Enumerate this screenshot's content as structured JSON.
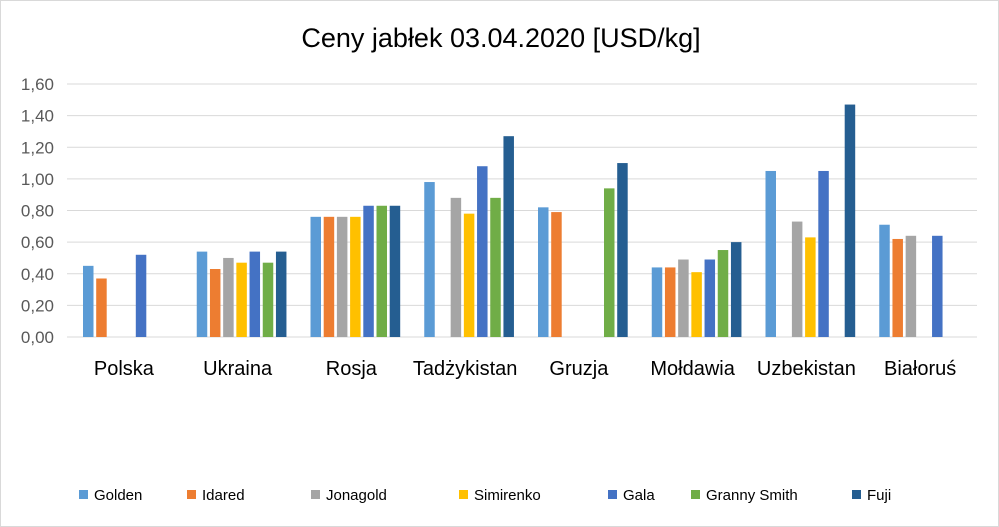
{
  "chart_data": {
    "type": "bar",
    "title": "Ceny jabłek 03.04.2020 [USD/kg]",
    "xlabel": "",
    "ylabel": "",
    "ylim": [
      0,
      1.6
    ],
    "yticks": [
      "0,00",
      "0,20",
      "0,40",
      "0,60",
      "0,80",
      "1,00",
      "1,20",
      "1,40",
      "1,60"
    ],
    "grid": true,
    "legend_position": "bottom",
    "categories": [
      "Polska",
      "Ukraina",
      "Rosja",
      "Tadżykistan",
      "Gruzja",
      "Mołdawia",
      "Uzbekistan",
      "Białoruś"
    ],
    "series": [
      {
        "name": "Golden",
        "color": "#5b9bd5",
        "values": [
          0.45,
          0.54,
          0.76,
          0.98,
          0.82,
          0.44,
          1.05,
          0.71
        ]
      },
      {
        "name": "Idared",
        "color": "#ed7d31",
        "values": [
          0.37,
          0.43,
          0.76,
          null,
          0.79,
          0.44,
          null,
          0.62
        ]
      },
      {
        "name": "Jonagold",
        "color": "#a5a5a5",
        "values": [
          null,
          0.5,
          0.76,
          0.88,
          null,
          0.49,
          0.73,
          0.64
        ]
      },
      {
        "name": "Simirenko",
        "color": "#ffc000",
        "values": [
          null,
          0.47,
          0.76,
          0.78,
          null,
          0.41,
          0.63,
          null
        ]
      },
      {
        "name": "Gala",
        "color": "#4472c4",
        "values": [
          0.52,
          0.54,
          0.83,
          1.08,
          null,
          0.49,
          1.05,
          0.64
        ]
      },
      {
        "name": "Granny Smith",
        "color": "#70ad47",
        "values": [
          null,
          0.47,
          0.83,
          0.88,
          0.94,
          0.55,
          null,
          null
        ]
      },
      {
        "name": "Fuji",
        "color": "#255e91",
        "values": [
          null,
          0.54,
          0.83,
          1.27,
          1.1,
          0.6,
          1.47,
          null
        ]
      }
    ]
  }
}
